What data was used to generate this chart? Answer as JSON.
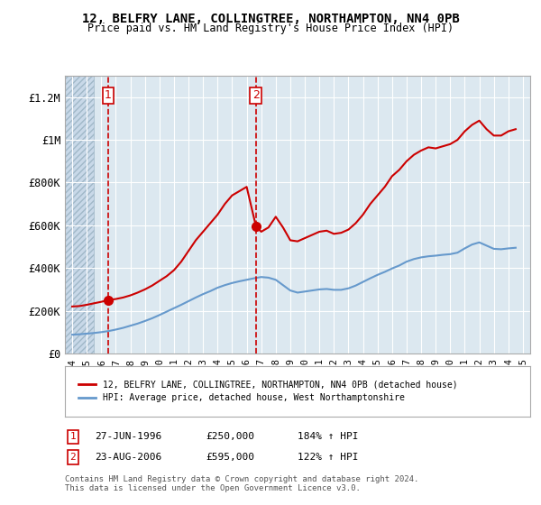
{
  "title": "12, BELFRY LANE, COLLINGTREE, NORTHAMPTON, NN4 0PB",
  "subtitle": "Price paid vs. HM Land Registry's House Price Index (HPI)",
  "bg_color": "#f0f4f8",
  "plot_bg_color": "#dce8f0",
  "hatch_bg_color": "#c8d8e8",
  "ylabel_ticks": [
    "£0",
    "£200K",
    "£400K",
    "£600K",
    "£800K",
    "£1M",
    "£1.2M"
  ],
  "ytick_vals": [
    0,
    200000,
    400000,
    600000,
    800000,
    1000000,
    1200000
  ],
  "ylim": [
    0,
    1300000
  ],
  "xlim_start": 1993.5,
  "xlim_end": 2025.5,
  "hatch_end": 1995.5,
  "red_line_color": "#cc0000",
  "blue_line_color": "#6699cc",
  "marker_color": "#cc0000",
  "vline_color": "#cc0000",
  "purchase1_x": 1996.48,
  "purchase1_y": 250000,
  "purchase2_x": 2006.64,
  "purchase2_y": 595000,
  "legend_line1": "12, BELFRY LANE, COLLINGTREE, NORTHAMPTON, NN4 0PB (detached house)",
  "legend_line2": "HPI: Average price, detached house, West Northamptonshire",
  "footnote": "Contains HM Land Registry data © Crown copyright and database right 2024.\nThis data is licensed under the Open Government Licence v3.0.",
  "table_row1_label": "1",
  "table_row1_date": "27-JUN-1996",
  "table_row1_price": "£250,000",
  "table_row1_hpi": "184% ↑ HPI",
  "table_row2_label": "2",
  "table_row2_date": "23-AUG-2006",
  "table_row2_price": "£595,000",
  "table_row2_hpi": "122% ↑ HPI",
  "red_line_x": [
    1994.0,
    1994.5,
    1995.0,
    1995.5,
    1996.0,
    1996.48,
    1997.0,
    1997.5,
    1998.0,
    1998.5,
    1999.0,
    1999.5,
    2000.0,
    2000.5,
    2001.0,
    2001.5,
    2002.0,
    2002.5,
    2003.0,
    2003.5,
    2004.0,
    2004.5,
    2005.0,
    2005.5,
    2006.0,
    2006.64,
    2007.0,
    2007.5,
    2008.0,
    2008.5,
    2009.0,
    2009.5,
    2010.0,
    2010.5,
    2011.0,
    2011.5,
    2012.0,
    2012.5,
    2013.0,
    2013.5,
    2014.0,
    2014.5,
    2015.0,
    2015.5,
    2016.0,
    2016.5,
    2017.0,
    2017.5,
    2018.0,
    2018.5,
    2019.0,
    2019.5,
    2020.0,
    2020.5,
    2021.0,
    2021.5,
    2022.0,
    2022.5,
    2023.0,
    2023.5,
    2024.0,
    2024.5
  ],
  "red_line_y": [
    220000,
    222000,
    228000,
    235000,
    242000,
    250000,
    255000,
    262000,
    272000,
    285000,
    300000,
    318000,
    340000,
    362000,
    390000,
    430000,
    480000,
    530000,
    570000,
    610000,
    650000,
    700000,
    740000,
    760000,
    780000,
    595000,
    570000,
    590000,
    640000,
    590000,
    530000,
    525000,
    540000,
    555000,
    570000,
    575000,
    560000,
    565000,
    580000,
    610000,
    650000,
    700000,
    740000,
    780000,
    830000,
    860000,
    900000,
    930000,
    950000,
    965000,
    960000,
    970000,
    980000,
    1000000,
    1040000,
    1070000,
    1090000,
    1050000,
    1020000,
    1020000,
    1040000,
    1050000
  ],
  "blue_line_x": [
    1994.0,
    1994.5,
    1995.0,
    1995.5,
    1996.0,
    1996.5,
    1997.0,
    1997.5,
    1998.0,
    1998.5,
    1999.0,
    1999.5,
    2000.0,
    2000.5,
    2001.0,
    2001.5,
    2002.0,
    2002.5,
    2003.0,
    2003.5,
    2004.0,
    2004.5,
    2005.0,
    2005.5,
    2006.0,
    2006.5,
    2007.0,
    2007.5,
    2008.0,
    2008.5,
    2009.0,
    2009.5,
    2010.0,
    2010.5,
    2011.0,
    2011.5,
    2012.0,
    2012.5,
    2013.0,
    2013.5,
    2014.0,
    2014.5,
    2015.0,
    2015.5,
    2016.0,
    2016.5,
    2017.0,
    2017.5,
    2018.0,
    2018.5,
    2019.0,
    2019.5,
    2020.0,
    2020.5,
    2021.0,
    2021.5,
    2022.0,
    2022.5,
    2023.0,
    2023.5,
    2024.0,
    2024.5
  ],
  "blue_line_y": [
    88000,
    90000,
    93000,
    96000,
    100000,
    105000,
    112000,
    120000,
    130000,
    140000,
    152000,
    165000,
    180000,
    196000,
    212000,
    228000,
    245000,
    262000,
    278000,
    292000,
    308000,
    320000,
    330000,
    338000,
    345000,
    352000,
    358000,
    355000,
    345000,
    320000,
    295000,
    285000,
    290000,
    295000,
    300000,
    302000,
    298000,
    298000,
    305000,
    318000,
    335000,
    352000,
    368000,
    382000,
    398000,
    412000,
    430000,
    442000,
    450000,
    455000,
    458000,
    462000,
    465000,
    472000,
    492000,
    510000,
    520000,
    505000,
    490000,
    488000,
    492000,
    495000
  ]
}
